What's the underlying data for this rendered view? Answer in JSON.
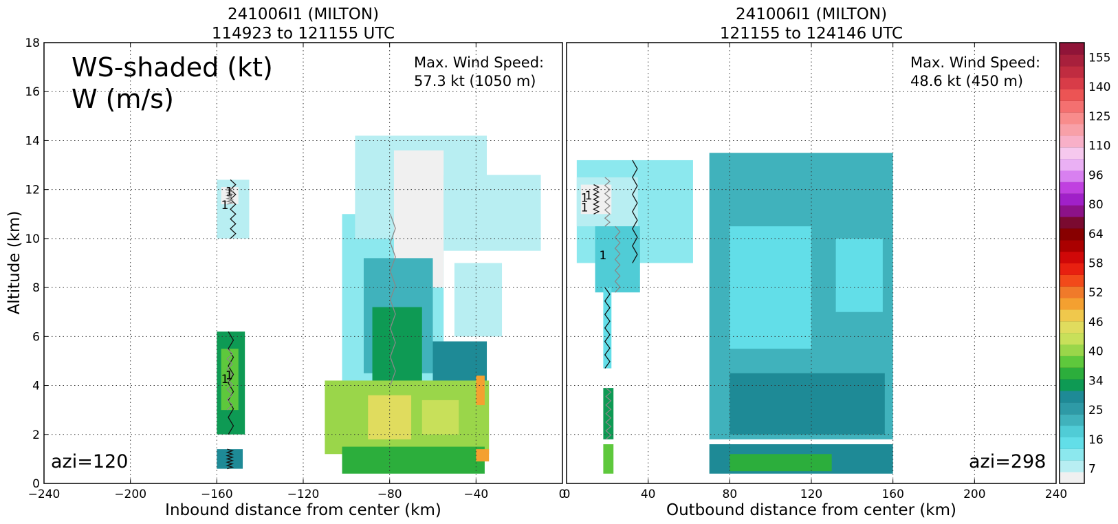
{
  "chart_data": [
    {
      "type": "heatmap",
      "title": "241006I1 (MILTON)",
      "subtitle": "114923 to 121155 UTC",
      "xlabel": "Inbound distance from center (km)",
      "ylabel": "Altitude (km)",
      "xlim": [
        -240,
        0
      ],
      "ylim": [
        0,
        18
      ],
      "xticks": [
        "−240",
        "−200",
        "−160",
        "−120",
        "−80",
        "−40",
        "0"
      ],
      "yticks": [
        "0",
        "2",
        "4",
        "6",
        "8",
        "10",
        "12",
        "14",
        "16",
        "18"
      ],
      "grid": true,
      "legend_text": [
        "WS-shaded (kt)",
        "W (m/s)"
      ],
      "annotation": [
        "Max. Wind Speed:",
        "57.3 kt (1050 m)"
      ],
      "azimuth_label": "azi=120",
      "max_wind_speed_kt": 57.3,
      "max_wind_height_m": 1050,
      "contour_label": "1",
      "regions": [
        {
          "x0": -160,
          "x1": -145,
          "y0": 10.0,
          "y1": 12.4,
          "ws": 12
        },
        {
          "x0": -158,
          "x1": -150,
          "y0": 11.4,
          "y1": 12.1,
          "ws": 7
        },
        {
          "x0": -160,
          "x1": -147,
          "y0": 2.0,
          "y1": 6.2,
          "ws": 34
        },
        {
          "x0": -158,
          "x1": -150,
          "y0": 3.0,
          "y1": 5.5,
          "ws": 38
        },
        {
          "x0": -160,
          "x1": -148,
          "y0": 0.6,
          "y1": 1.4,
          "ws": 32
        },
        {
          "x0": -102,
          "x1": -55,
          "y0": 4.0,
          "y1": 11.0,
          "ws": 14
        },
        {
          "x0": -96,
          "x1": -35,
          "y0": 10.0,
          "y1": 14.2,
          "ws": 12
        },
        {
          "x0": -78,
          "x1": -55,
          "y0": 8.0,
          "y1": 13.6,
          "ws": 7
        },
        {
          "x0": -55,
          "x1": -10,
          "y0": 9.5,
          "y1": 12.6,
          "ws": 11
        },
        {
          "x0": -50,
          "x1": -28,
          "y0": 6.0,
          "y1": 9.0,
          "ws": 12
        },
        {
          "x0": -92,
          "x1": -60,
          "y0": 4.5,
          "y1": 9.2,
          "ws": 25
        },
        {
          "x0": -88,
          "x1": -65,
          "y0": 3.2,
          "y1": 7.2,
          "ws": 34
        },
        {
          "x0": -60,
          "x1": -35,
          "y0": 3.5,
          "y1": 5.8,
          "ws": 32
        },
        {
          "x0": -110,
          "x1": -34,
          "y0": 1.2,
          "y1": 4.2,
          "ws": 40
        },
        {
          "x0": -90,
          "x1": -70,
          "y0": 1.8,
          "y1": 3.6,
          "ws": 46
        },
        {
          "x0": -65,
          "x1": -48,
          "y0": 2.0,
          "y1": 3.4,
          "ws": 44
        },
        {
          "x0": -40,
          "x1": -36,
          "y0": 3.2,
          "y1": 4.4,
          "ws": 49
        },
        {
          "x0": -102,
          "x1": -36,
          "y0": 0.4,
          "y1": 1.5,
          "ws": 36
        },
        {
          "x0": -40,
          "x1": -34,
          "y0": 0.9,
          "y1": 1.4,
          "ws": 50
        }
      ]
    },
    {
      "type": "heatmap",
      "title": "241006I1 (MILTON)",
      "subtitle": "121155 to 124146 UTC",
      "xlabel": "Outbound distance from center (km)",
      "xlim": [
        0,
        240
      ],
      "ylim": [
        0,
        18
      ],
      "xticks": [
        "0",
        "40",
        "80",
        "120",
        "160",
        "200",
        "240"
      ],
      "grid": true,
      "annotation": [
        "Max. Wind Speed:",
        "48.6 kt (450 m)"
      ],
      "azimuth_label": "azi=298",
      "max_wind_speed_kt": 48.6,
      "max_wind_height_m": 450,
      "contour_label": "1",
      "regions": [
        {
          "x0": 5,
          "x1": 62,
          "y0": 9.0,
          "y1": 13.2,
          "ws": 14
        },
        {
          "x0": 5,
          "x1": 35,
          "y0": 10.5,
          "y1": 12.5,
          "ws": 11
        },
        {
          "x0": 7,
          "x1": 22,
          "y0": 11.0,
          "y1": 12.2,
          "ws": 7
        },
        {
          "x0": 14,
          "x1": 36,
          "y0": 7.8,
          "y1": 10.5,
          "ws": 19
        },
        {
          "x0": 18,
          "x1": 22,
          "y0": 4.7,
          "y1": 8.0,
          "ws": 18
        },
        {
          "x0": 18,
          "x1": 23,
          "y0": 1.8,
          "y1": 3.9,
          "ws": 34
        },
        {
          "x0": 18,
          "x1": 23,
          "y0": 0.4,
          "y1": 1.6,
          "ws": 38
        },
        {
          "x0": 70,
          "x1": 160,
          "y0": 1.8,
          "y1": 13.5,
          "ws": 25
        },
        {
          "x0": 80,
          "x1": 120,
          "y0": 5.5,
          "y1": 10.5,
          "ws": 18
        },
        {
          "x0": 92,
          "x1": 112,
          "y0": 7.0,
          "y1": 9.5,
          "ws": 16
        },
        {
          "x0": 132,
          "x1": 155,
          "y0": 7.0,
          "y1": 10.0,
          "ws": 18
        },
        {
          "x0": 80,
          "x1": 156,
          "y0": 2.0,
          "y1": 4.5,
          "ws": 32
        },
        {
          "x0": 70,
          "x1": 160,
          "y0": 0.4,
          "y1": 1.6,
          "ws": 32
        },
        {
          "x0": 80,
          "x1": 130,
          "y0": 0.5,
          "y1": 1.2,
          "ws": 36
        }
      ]
    }
  ],
  "colorbar": {
    "orientation": "vertical",
    "tick_labels": [
      "7",
      "16",
      "25",
      "34",
      "40",
      "46",
      "52",
      "58",
      "64",
      "80",
      "96",
      "110",
      "125",
      "140",
      "155"
    ],
    "colors": [
      "#f0f0f0",
      "#b8eef2",
      "#8ce8ee",
      "#62dee8",
      "#50ccd6",
      "#40b2bc",
      "#2e9aa6",
      "#1e8a96",
      "#0e9a54",
      "#2cae3c",
      "#5ec83c",
      "#9ad64a",
      "#c8e05a",
      "#e0dc5e",
      "#f0c84c",
      "#f4a030",
      "#f07a2a",
      "#f24a1a",
      "#e82010",
      "#d00808",
      "#aa0000",
      "#880000",
      "#7a0a30",
      "#8c1288",
      "#a020c8",
      "#c040e0",
      "#d880f0",
      "#eab0f4",
      "#f6c8ee",
      "#f8b0c8",
      "#f8a0a8",
      "#f88c8c",
      "#f47070",
      "#ec5454",
      "#d83c48",
      "#c02c40",
      "#a8203c",
      "#901438"
    ]
  }
}
